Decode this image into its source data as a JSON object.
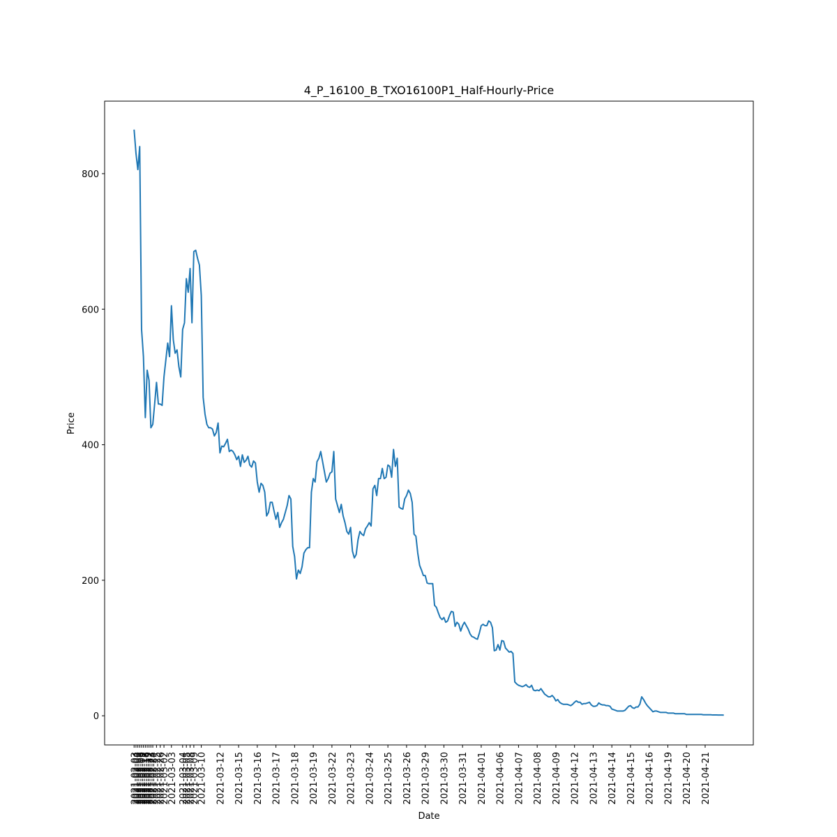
{
  "chart_data": {
    "type": "line",
    "title": "4_P_16100_B_TXO16100P1_Half-Hourly-Price",
    "x_label": "Date",
    "y_label": "Price",
    "color": "#1f77b4",
    "categories": [
      "2021-02-03",
      "2021-02-04",
      "2021-02-05",
      "2021-02-08",
      "2021-02-09",
      "2021-02-17",
      "2021-02-18",
      "2021-02-19",
      "2021-02-22",
      "2021-02-23",
      "2021-02-24",
      null,
      "2021-02-25",
      null,
      "2021-02-26",
      null,
      "2021-03-02",
      null,
      null,
      null,
      "2021-03-03",
      null,
      null,
      null,
      null,
      null,
      "2021-03-04",
      null,
      "2021-03-05",
      null,
      "2021-03-08",
      null,
      "2021-03-09",
      null,
      null,
      null,
      "2021-03-10",
      null,
      null,
      null,
      null,
      null,
      null,
      null,
      null,
      null,
      "2021-03-12",
      null,
      null,
      null,
      null,
      null,
      null,
      null,
      null,
      null,
      "2021-03-15",
      null,
      null,
      null,
      null,
      null,
      null,
      null,
      null,
      null,
      "2021-03-16",
      null,
      null,
      null,
      null,
      null,
      null,
      null,
      null,
      null,
      "2021-03-17",
      null,
      null,
      null,
      null,
      null,
      null,
      null,
      null,
      null,
      "2021-03-18",
      null,
      null,
      null,
      null,
      null,
      null,
      null,
      null,
      null,
      "2021-03-19",
      null,
      null,
      null,
      null,
      null,
      null,
      null,
      null,
      null,
      "2021-03-22",
      null,
      null,
      null,
      null,
      null,
      null,
      null,
      null,
      null,
      "2021-03-23",
      null,
      null,
      null,
      null,
      null,
      null,
      null,
      null,
      null,
      "2021-03-24",
      null,
      null,
      null,
      null,
      null,
      null,
      null,
      null,
      null,
      "2021-03-25",
      null,
      null,
      null,
      null,
      null,
      null,
      null,
      null,
      null,
      "2021-03-26",
      null,
      null,
      null,
      null,
      null,
      null,
      null,
      null,
      null,
      "2021-03-29",
      null,
      null,
      null,
      null,
      null,
      null,
      null,
      null,
      null,
      "2021-03-30",
      null,
      null,
      null,
      null,
      null,
      null,
      null,
      null,
      null,
      "2021-03-31",
      null,
      null,
      null,
      null,
      null,
      null,
      null,
      null,
      null,
      "2021-04-01",
      null,
      null,
      null,
      null,
      null,
      null,
      null,
      null,
      null,
      "2021-04-06",
      null,
      null,
      null,
      null,
      null,
      null,
      null,
      null,
      null,
      "2021-04-07",
      null,
      null,
      null,
      null,
      null,
      null,
      null,
      null,
      null,
      "2021-04-08",
      null,
      null,
      null,
      null,
      null,
      null,
      null,
      null,
      null,
      "2021-04-09",
      null,
      null,
      null,
      null,
      null,
      null,
      null,
      null,
      null,
      "2021-04-12",
      null,
      null,
      null,
      null,
      null,
      null,
      null,
      null,
      null,
      "2021-04-13",
      null,
      null,
      null,
      null,
      null,
      null,
      null,
      null,
      null,
      "2021-04-14",
      null,
      null,
      null,
      null,
      null,
      null,
      null,
      null,
      null,
      "2021-04-15",
      null,
      null,
      null,
      null,
      null,
      null,
      null,
      null,
      null,
      "2021-04-16",
      null,
      null,
      null,
      null,
      null,
      null,
      null,
      null,
      null,
      "2021-04-19",
      null,
      null,
      null,
      null,
      null,
      null,
      null,
      null,
      null,
      "2021-04-20",
      null,
      null,
      null,
      null,
      null,
      null,
      null,
      null,
      null,
      "2021-04-21",
      null,
      null,
      null,
      null,
      null,
      null,
      null,
      null,
      null,
      null
    ],
    "values": [
      865,
      830,
      806,
      840,
      570,
      530,
      440,
      510,
      495,
      425,
      430,
      460,
      492,
      460,
      460,
      458,
      500,
      525,
      550,
      530,
      605,
      555,
      535,
      540,
      515,
      500,
      570,
      580,
      645,
      625,
      660,
      580,
      685,
      687,
      675,
      665,
      620,
      470,
      445,
      430,
      425,
      425,
      423,
      413,
      418,
      432,
      388,
      398,
      397,
      402,
      408,
      390,
      392,
      390,
      385,
      378,
      383,
      368,
      385,
      374,
      377,
      383,
      370,
      367,
      376,
      373,
      345,
      330,
      343,
      340,
      330,
      295,
      300,
      315,
      315,
      302,
      290,
      300,
      278,
      285,
      290,
      300,
      310,
      325,
      320,
      250,
      235,
      202,
      215,
      210,
      220,
      240,
      245,
      248,
      248,
      330,
      350,
      345,
      375,
      380,
      390,
      375,
      360,
      345,
      350,
      358,
      360,
      390,
      320,
      310,
      300,
      312,
      295,
      285,
      272,
      268,
      278,
      243,
      233,
      238,
      260,
      272,
      268,
      266,
      276,
      280,
      285,
      280,
      335,
      340,
      325,
      350,
      350,
      365,
      350,
      352,
      370,
      368,
      352,
      393,
      368,
      380,
      308,
      306,
      305,
      320,
      325,
      333,
      328,
      315,
      268,
      265,
      240,
      222,
      215,
      207,
      207,
      196,
      195,
      195,
      195,
      163,
      160,
      152,
      145,
      142,
      145,
      138,
      140,
      148,
      154,
      153,
      132,
      138,
      135,
      125,
      133,
      138,
      133,
      128,
      121,
      117,
      116,
      114,
      113,
      122,
      133,
      135,
      133,
      133,
      140,
      138,
      130,
      96,
      97,
      105,
      97,
      111,
      110,
      100,
      97,
      94,
      95,
      92,
      50,
      47,
      45,
      44,
      43,
      44,
      46,
      43,
      42,
      45,
      38,
      37,
      38,
      37,
      40,
      36,
      32,
      30,
      28,
      28,
      30,
      27,
      22,
      24,
      20,
      18,
      17,
      17,
      17,
      16,
      15,
      17,
      20,
      22,
      20,
      20,
      17,
      18,
      18,
      19,
      20,
      16,
      14,
      14,
      15,
      19,
      17,
      16,
      16,
      15,
      15,
      14,
      10,
      9,
      8,
      7,
      7,
      7,
      7,
      8,
      11,
      14,
      15,
      12,
      11,
      13,
      13,
      17,
      28,
      24,
      19,
      15,
      12,
      9,
      6,
      7,
      7,
      6,
      5,
      5,
      5,
      5,
      4,
      4,
      4,
      4,
      3,
      3,
      3,
      3,
      3,
      3,
      2,
      2,
      2,
      2,
      2,
      2,
      2,
      2,
      2,
      1.5,
      1.5,
      1.5,
      1.5,
      1.5,
      1.2,
      1.2,
      1.2,
      1.1,
      1.1,
      1.1,
      1.0
    ],
    "ylim": [
      -43,
      907
    ],
    "yticks": [
      0,
      200,
      400,
      600,
      800
    ],
    "grid": false
  }
}
